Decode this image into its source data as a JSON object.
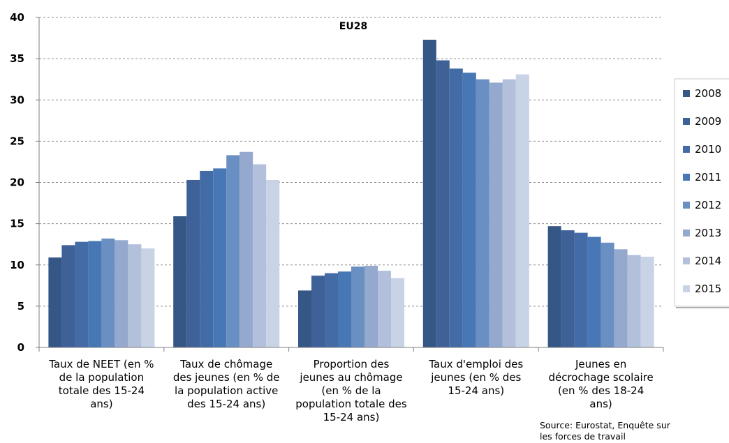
{
  "chart_data": {
    "type": "bar",
    "title": "EU28",
    "xlabel": "",
    "ylabel": "",
    "ylim": [
      0,
      40
    ],
    "yticks": [
      0,
      5,
      10,
      15,
      20,
      25,
      30,
      35,
      40
    ],
    "grid": true,
    "legend_position": "right",
    "categories": [
      [
        "Taux de NEET (en %",
        "de la population",
        "totale des 15-24",
        "ans)"
      ],
      [
        "Taux de chômage",
        "des jeunes (en % de",
        "la population active",
        "des 15-24 ans)"
      ],
      [
        "Proportion des",
        "jeunes au chômage",
        "(en % de la",
        "population totale des",
        "15-24 ans)"
      ],
      [
        "Taux d'emploi des",
        "jeunes (en % des",
        "15-24 ans)"
      ],
      [
        "Jeunes en",
        "décrochage scolaire",
        "(en % des 18-24",
        "ans)"
      ]
    ],
    "series": [
      {
        "name": "2008",
        "color": "#355785",
        "values": [
          10.9,
          15.9,
          6.9,
          37.3,
          14.7
        ]
      },
      {
        "name": "2009",
        "color": "#3e6298",
        "values": [
          12.4,
          20.3,
          8.7,
          34.8,
          14.2
        ]
      },
      {
        "name": "2010",
        "color": "#436ba6",
        "values": [
          12.8,
          21.4,
          9.0,
          33.8,
          13.9
        ]
      },
      {
        "name": "2011",
        "color": "#4777b4",
        "values": [
          12.9,
          21.7,
          9.2,
          33.3,
          13.4
        ]
      },
      {
        "name": "2012",
        "color": "#6a8fc2",
        "values": [
          13.2,
          23.3,
          9.8,
          32.5,
          12.7
        ]
      },
      {
        "name": "2013",
        "color": "#95a9cf",
        "values": [
          13.0,
          23.7,
          9.9,
          32.1,
          11.9
        ]
      },
      {
        "name": "2014",
        "color": "#b2c0dc",
        "values": [
          12.5,
          22.2,
          9.3,
          32.5,
          11.2
        ]
      },
      {
        "name": "2015",
        "color": "#c9d3e6",
        "values": [
          12.0,
          20.3,
          8.4,
          33.1,
          11.0
        ]
      }
    ],
    "annotations": [
      "Source: Eurostat, Enquête sur",
      "les forces de travail"
    ]
  }
}
